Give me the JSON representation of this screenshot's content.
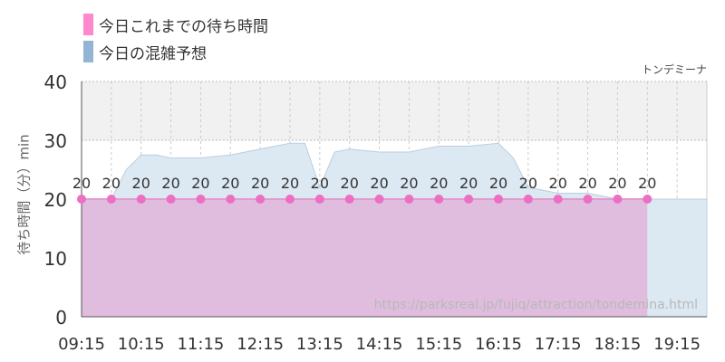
{
  "chart_data": {
    "type": "area",
    "title": "",
    "site_name": "トンデミーナ",
    "legend_placement": "top-left",
    "legend": [
      {
        "label": "今日これまでの待ち時間",
        "color": "#ff88cc"
      },
      {
        "label": "今日の混雑予想",
        "color": "#93b4d4"
      }
    ],
    "xlabel": "",
    "ylabel": "待ち時間（分）min",
    "ylim": [
      0,
      40
    ],
    "yticks": [
      0,
      10,
      20,
      30,
      40
    ],
    "grid": true,
    "x_tick_labels": [
      "09:15",
      "10:15",
      "11:15",
      "12:15",
      "13:15",
      "14:15",
      "15:15",
      "16:15",
      "17:15",
      "18:15",
      "19:15"
    ],
    "series": [
      {
        "name": "今日これまでの待ち時間",
        "x": [
          "09:15",
          "09:45",
          "10:15",
          "10:45",
          "11:15",
          "11:45",
          "12:15",
          "12:45",
          "13:15",
          "13:45",
          "14:15",
          "14:45",
          "15:15",
          "15:45",
          "16:15",
          "16:45",
          "17:15",
          "17:45",
          "18:15",
          "18:45"
        ],
        "values": [
          20,
          20,
          20,
          20,
          20,
          20,
          20,
          20,
          20,
          20,
          20,
          20,
          20,
          20,
          20,
          20,
          20,
          20,
          20,
          20
        ]
      },
      {
        "name": "今日の混雑予想",
        "x": [
          "09:15",
          "09:45",
          "10:00",
          "10:15",
          "10:30",
          "10:45",
          "11:15",
          "11:45",
          "12:15",
          "12:45",
          "13:00",
          "13:15",
          "13:30",
          "13:45",
          "14:15",
          "14:45",
          "15:15",
          "15:45",
          "16:15",
          "16:30",
          "16:45",
          "17:15",
          "17:45",
          "18:15",
          "18:45",
          "19:15",
          "19:45"
        ],
        "values": [
          20,
          20,
          25,
          27.5,
          27.5,
          27,
          27,
          27.5,
          28.5,
          29.5,
          29.5,
          22,
          28,
          28.5,
          28,
          28,
          29,
          29,
          29.5,
          27,
          22,
          21,
          21,
          20,
          20,
          20,
          20
        ]
      }
    ],
    "band": {
      "from": 30,
      "to": 40,
      "color": "#f1f1f1"
    },
    "watermark": "https://parksreal.jp/fujiq/attraction/tondemina.html"
  }
}
